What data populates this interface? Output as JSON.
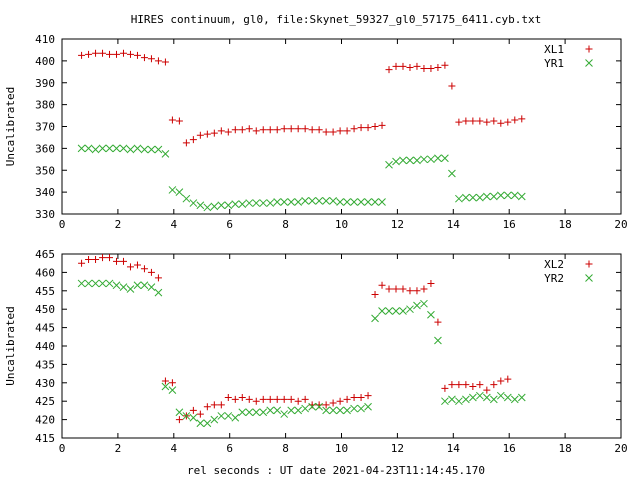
{
  "title": "HIRES continuum, gl0, file:Skynet_59327_gl0_57175_6411.cyb.txt",
  "xlabel": "rel seconds : UT date 2021-04-23T11:14:45.170",
  "colors": {
    "series_1": "#cc0000",
    "series_2": "#33aa33"
  },
  "chart_data": [
    {
      "type": "scatter",
      "ylabel": "Uncalibrated",
      "xlim": [
        0,
        20
      ],
      "ylim": [
        330,
        410
      ],
      "xticks": [
        0,
        2,
        4,
        6,
        8,
        10,
        12,
        14,
        16,
        18,
        20
      ],
      "yticks": [
        330,
        340,
        350,
        360,
        370,
        380,
        390,
        400,
        410
      ],
      "legend_position": "top-right",
      "grid": false,
      "x": [
        0.7,
        0.95,
        1.2,
        1.45,
        1.7,
        1.95,
        2.2,
        2.45,
        2.7,
        2.95,
        3.2,
        3.45,
        3.7,
        3.95,
        4.2,
        4.45,
        4.7,
        4.95,
        5.2,
        5.45,
        5.7,
        5.95,
        6.2,
        6.45,
        6.7,
        6.95,
        7.2,
        7.45,
        7.7,
        7.95,
        8.2,
        8.45,
        8.7,
        8.95,
        9.2,
        9.45,
        9.7,
        9.95,
        10.2,
        10.45,
        10.7,
        10.95,
        11.2,
        11.45,
        11.7,
        11.95,
        12.2,
        12.45,
        12.7,
        12.95,
        13.2,
        13.45,
        13.7,
        13.95,
        14.2,
        14.45,
        14.7,
        14.95,
        15.2,
        15.45,
        15.7,
        15.95,
        16.2,
        16.45,
        16.7,
        16.95,
        17.2,
        17.45,
        17.7,
        17.95,
        18.2,
        18.45,
        18.7
      ],
      "series": [
        {
          "name": "XL1",
          "marker": "plus",
          "values": [
            402.5,
            403,
            403.5,
            403.5,
            403,
            403,
            403.5,
            403,
            402.5,
            401.5,
            401,
            400,
            399.5,
            373,
            372.5,
            362.5,
            364,
            366,
            366.5,
            367,
            368,
            367.5,
            368.5,
            368.5,
            369,
            368,
            368.5,
            368.5,
            368.5,
            369,
            369,
            369,
            369,
            368.5,
            368.5,
            367.5,
            367.5,
            368,
            368,
            369,
            369.5,
            369.5,
            370,
            370.5,
            396,
            397.5,
            397.5,
            397,
            397.5,
            396.5,
            396.5,
            397,
            398,
            388.5,
            372,
            372.5,
            372.5,
            372.5,
            372,
            372.5,
            371.5,
            372,
            373,
            373.5,
            null,
            null,
            null,
            null,
            null,
            null,
            null,
            null,
            null
          ]
        },
        {
          "name": "YR1",
          "marker": "cross",
          "values": [
            360,
            360,
            359.5,
            360,
            360,
            360,
            360,
            359.5,
            360,
            359.5,
            359.5,
            359.5,
            357.5,
            341,
            340,
            337,
            335,
            334,
            333,
            333.5,
            334,
            334,
            334.5,
            334.5,
            335,
            335,
            335,
            335,
            335.5,
            335.5,
            335.5,
            335.5,
            336,
            336,
            336,
            336,
            336,
            335.5,
            335.5,
            335.5,
            335.5,
            335.5,
            335.5,
            335.5,
            352.5,
            354,
            354.5,
            354.5,
            354.5,
            355,
            355,
            355.5,
            355.5,
            348.5,
            337,
            337.5,
            337.5,
            337.5,
            338,
            338,
            338.5,
            338.5,
            338.5,
            338,
            null,
            null,
            null,
            null,
            null,
            null,
            null,
            null,
            null
          ]
        }
      ]
    },
    {
      "type": "scatter",
      "ylabel": "Uncalibrated",
      "xlim": [
        0,
        20
      ],
      "ylim": [
        415,
        465
      ],
      "xticks": [
        0,
        2,
        4,
        6,
        8,
        10,
        12,
        14,
        16,
        18,
        20
      ],
      "yticks": [
        415,
        420,
        425,
        430,
        435,
        440,
        445,
        450,
        455,
        460,
        465
      ],
      "legend_position": "top-right",
      "grid": false,
      "x": [
        0.7,
        0.95,
        1.2,
        1.45,
        1.7,
        1.95,
        2.2,
        2.45,
        2.7,
        2.95,
        3.2,
        3.45,
        3.7,
        3.95,
        4.2,
        4.45,
        4.7,
        4.95,
        5.2,
        5.45,
        5.7,
        5.95,
        6.2,
        6.45,
        6.7,
        6.95,
        7.2,
        7.45,
        7.7,
        7.95,
        8.2,
        8.45,
        8.7,
        8.95,
        9.2,
        9.45,
        9.7,
        9.95,
        10.2,
        10.45,
        10.7,
        10.95,
        11.2,
        11.45,
        11.7,
        11.95,
        12.2,
        12.45,
        12.7,
        12.95,
        13.2,
        13.45,
        13.7,
        13.95,
        14.2,
        14.45,
        14.7,
        14.95,
        15.2,
        15.45,
        15.7,
        15.95,
        16.2,
        16.45,
        16.7,
        16.95,
        17.2,
        17.45,
        17.7,
        17.95,
        18.2,
        18.45,
        18.7
      ],
      "series": [
        {
          "name": "XL2",
          "marker": "plus",
          "values": [
            462.5,
            463.5,
            463.5,
            464,
            464,
            463,
            463,
            461.5,
            462,
            461,
            460,
            458.5,
            430.5,
            430,
            420,
            421,
            422.5,
            421.5,
            423.5,
            424,
            424,
            426,
            425.5,
            426,
            425.5,
            425,
            425.5,
            425.5,
            425.5,
            425.5,
            425.5,
            425,
            425.5,
            424,
            424,
            424,
            424.5,
            425,
            425.5,
            426,
            426,
            426.5,
            454,
            456.5,
            455.5,
            455.5,
            455.5,
            455,
            455,
            455.5,
            457,
            446.5,
            428.5,
            429.5,
            429.5,
            429.5,
            429,
            429.5,
            428,
            429.5,
            430.5,
            431,
            null,
            null,
            null,
            null,
            null,
            null,
            null,
            null,
            null,
            null,
            null
          ]
        },
        {
          "name": "YR2",
          "marker": "cross",
          "values": [
            457,
            457,
            457,
            457,
            457,
            456.5,
            456,
            455.5,
            456.5,
            456.5,
            456,
            454.5,
            429,
            428,
            422,
            421,
            420.5,
            419,
            419,
            420,
            421,
            421,
            420.5,
            422,
            422,
            422,
            422,
            422.5,
            422.5,
            421.5,
            422.5,
            422.5,
            423,
            423.5,
            423.5,
            422.5,
            422.5,
            422.5,
            422.5,
            423,
            423,
            423.5,
            447.5,
            449.5,
            449.5,
            449.5,
            449.5,
            450,
            451,
            451.5,
            448.5,
            441.5,
            425,
            425.5,
            425,
            425.5,
            426,
            426.5,
            426,
            425.5,
            426.5,
            426,
            425.5,
            426,
            null,
            null,
            null,
            null,
            null,
            null,
            null,
            null,
            null
          ]
        }
      ]
    }
  ]
}
